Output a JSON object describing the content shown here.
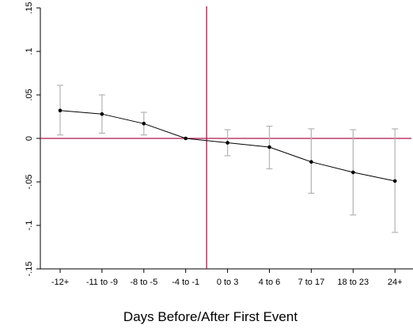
{
  "chart_data": {
    "type": "line",
    "title": "",
    "xlabel": "Days Before/After First Event",
    "ylabel": "",
    "categories": [
      "-12+",
      "-11 to -9",
      "-8 to -5",
      "-4 to -1",
      "0 to 3",
      "4 to 6",
      "7 to 17",
      "18 to 23",
      "24+"
    ],
    "series": [
      {
        "values": [
          0.032,
          0.028,
          0.017,
          0.0,
          -0.005,
          -0.01,
          -0.027,
          -0.039,
          -0.049
        ],
        "ci_low": [
          0.004,
          0.006,
          0.004,
          0.0,
          -0.02,
          -0.035,
          -0.063,
          -0.088,
          -0.108
        ],
        "ci_high": [
          0.061,
          0.05,
          0.03,
          0.0,
          0.01,
          0.014,
          0.011,
          0.01,
          0.011
        ]
      }
    ],
    "ylim": [
      -0.15,
      0.15
    ],
    "y_ticks": [
      0.15,
      0.1,
      0.05,
      0,
      -0.05,
      -0.1,
      -0.15
    ],
    "y_tick_labels": [
      ".15",
      ".1",
      ".05",
      "0",
      "-.05",
      "-.1",
      "-.15"
    ],
    "reference_lines": {
      "horizontal_y": 0,
      "vertical_between": [
        "-4 to -1",
        "0 to 3"
      ]
    },
    "grid": false,
    "colors": {
      "series": "#000000",
      "ci": "#b3b3b3",
      "reference": "#b0164e",
      "axis": "#000000"
    }
  }
}
